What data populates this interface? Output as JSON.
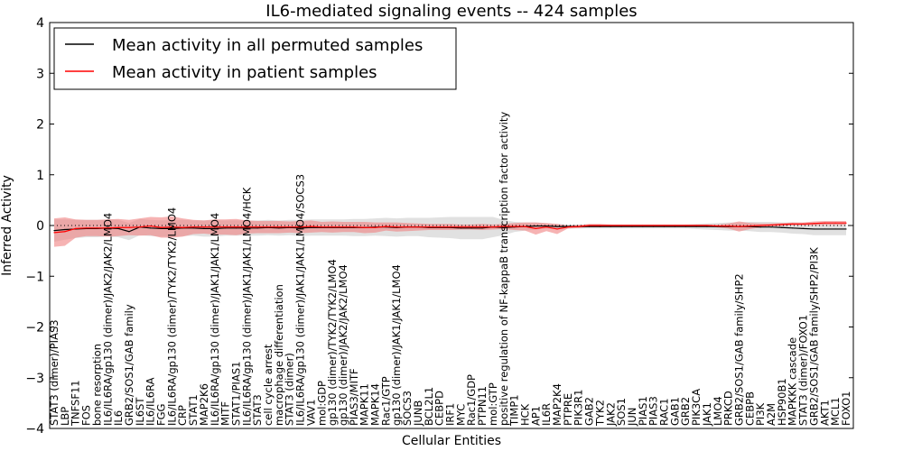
{
  "chart_data": {
    "type": "line",
    "title": "IL6-mediated signaling events -- 424 samples",
    "xlabel": "Cellular Entities",
    "ylabel": "Inferred Activity",
    "ylim": [
      -4,
      4
    ],
    "yticks": [
      -4,
      -3,
      -2,
      -1,
      0,
      1,
      2,
      3,
      4
    ],
    "legend_position": "top-left",
    "colors": {
      "permuted": "#000000",
      "patient": "#ff0000",
      "permuted_band": "#c8c8c8",
      "patient_band": "#f08080",
      "zero_line": "#000000"
    },
    "categories": [
      "STAT3 (dimer)/PIAS3",
      "LBP",
      "TNFSF11",
      "FOS",
      "bone resorption",
      "IL6/IL6RA/gp130 (dimer)/JAK2/JAK2/LMO4",
      "IL6",
      "GRB2/SOS1/GAB family",
      "IL6ST",
      "IL6/IL6RA",
      "FGG",
      "IL6/IL6RA/gp130 (dimer)/TYK2/TYK2/LMO4",
      "CRP",
      "STAT1",
      "MAP2K6",
      "IL6/IL6RA/gp130 (dimer)/JAK1/JAK1/LMO4",
      "MITF",
      "STAT1/PIAS1",
      "IL6/IL6RA/gp130 (dimer)/JAK1/JAK1/LMO4/HCK",
      "STAT3",
      "cell cycle arrest",
      "macrophage differentiation",
      "STAT3 (dimer)",
      "IL6/IL6RA/gp130 (dimer)/JAK1/JAK1/LMO4/SOCS3",
      "VAV1",
      "mol:GDP",
      "gp130 (dimer)/TYK2/TYK2/LMO4",
      "gp130 (dimer)/JAK2/JAK2/LMO4",
      "PIAS3/MITF",
      "MAPK11",
      "MAPK14",
      "Rac1/GTP",
      "gp130 (dimer)/JAK1/JAK1/LMO4",
      "SOCS3",
      "JUNB",
      "BCL2L1",
      "CEBPD",
      "IRF1",
      "MYC",
      "Rac1/GDP",
      "PTPN11",
      "mol:GTP",
      "positive regulation of NF-kappaB transcription factor activity",
      "TIMP1",
      "HCK",
      "AP1",
      "IL6R",
      "MAP2K4",
      "PTPRE",
      "PIK3R1",
      "GAB2",
      "TYK2",
      "JAK2",
      "SOS1",
      "JUN",
      "PIAS1",
      "PIAS3",
      "RAC1",
      "GAB1",
      "GRB2",
      "PIK3CA",
      "JAK1",
      "LMO4",
      "PRKCD",
      "GRB2/SOS1/GAB family/SHP2",
      "CEBPB",
      "PI3K",
      "A2M",
      "HSP90B1",
      "MAPKKK cascade",
      "STAT3 (dimer)/FOXO1",
      "GRB2/SOS1/GAB family/SHP2/PI3K",
      "AKT1",
      "MCL1",
      "FOXO1"
    ],
    "series": [
      {
        "name": "Mean activity in all permuted samples",
        "values": [
          -0.1,
          -0.08,
          -0.07,
          -0.06,
          -0.06,
          -0.05,
          -0.06,
          -0.12,
          -0.03,
          -0.05,
          -0.06,
          -0.06,
          -0.05,
          -0.05,
          -0.06,
          -0.06,
          -0.05,
          -0.05,
          -0.05,
          -0.05,
          -0.04,
          -0.05,
          -0.04,
          -0.05,
          -0.04,
          -0.04,
          -0.04,
          -0.04,
          -0.04,
          -0.04,
          -0.03,
          -0.03,
          -0.04,
          -0.03,
          -0.03,
          -0.04,
          -0.04,
          -0.04,
          -0.05,
          -0.05,
          -0.05,
          -0.03,
          -0.04,
          -0.03,
          -0.02,
          -0.01,
          -0.01,
          -0.02,
          -0.02,
          -0.02,
          -0.02,
          -0.02,
          -0.02,
          -0.02,
          -0.02,
          -0.02,
          -0.02,
          -0.02,
          -0.02,
          -0.02,
          -0.02,
          -0.02,
          -0.02,
          -0.02,
          -0.02,
          -0.02,
          -0.03,
          -0.03,
          -0.04,
          -0.05,
          -0.06,
          -0.07,
          -0.07,
          -0.07,
          -0.07
        ],
        "band": [
          0.22,
          0.2,
          0.18,
          0.17,
          0.17,
          0.17,
          0.17,
          0.17,
          0.16,
          0.16,
          0.16,
          0.16,
          0.16,
          0.15,
          0.16,
          0.16,
          0.15,
          0.15,
          0.15,
          0.15,
          0.15,
          0.15,
          0.15,
          0.16,
          0.16,
          0.16,
          0.16,
          0.16,
          0.17,
          0.17,
          0.17,
          0.18,
          0.18,
          0.18,
          0.18,
          0.19,
          0.2,
          0.21,
          0.22,
          0.22,
          0.22,
          0.2,
          0.15,
          0.1,
          0.08,
          0.07,
          0.05,
          0.05,
          0.04,
          0.04,
          0.04,
          0.04,
          0.04,
          0.04,
          0.04,
          0.04,
          0.04,
          0.04,
          0.04,
          0.04,
          0.05,
          0.06,
          0.07,
          0.08,
          0.08,
          0.09,
          0.1,
          0.1,
          0.1,
          0.11,
          0.11,
          0.12,
          0.12,
          0.12,
          0.12
        ]
      },
      {
        "name": "Mean activity in patient samples",
        "values": [
          -0.14,
          -0.12,
          -0.06,
          -0.05,
          -0.05,
          -0.05,
          -0.04,
          -0.04,
          -0.03,
          -0.01,
          -0.04,
          -0.03,
          -0.04,
          -0.03,
          -0.03,
          -0.03,
          -0.03,
          -0.03,
          -0.03,
          -0.03,
          -0.03,
          -0.03,
          -0.03,
          -0.03,
          -0.02,
          -0.03,
          -0.03,
          -0.03,
          -0.03,
          -0.04,
          -0.04,
          -0.02,
          -0.03,
          -0.03,
          -0.03,
          -0.03,
          -0.03,
          -0.03,
          -0.03,
          -0.03,
          -0.03,
          -0.03,
          -0.02,
          -0.02,
          -0.02,
          -0.06,
          -0.03,
          -0.07,
          -0.03,
          -0.02,
          0.0,
          0.0,
          0.0,
          0.0,
          0.0,
          0.0,
          0.0,
          0.0,
          0.0,
          0.0,
          0.0,
          0.0,
          -0.01,
          -0.01,
          -0.02,
          -0.01,
          0.0,
          0.01,
          0.02,
          0.03,
          0.03,
          0.04,
          0.05,
          0.05,
          0.05
        ],
        "band": [
          0.28,
          0.28,
          0.18,
          0.16,
          0.16,
          0.17,
          0.17,
          0.15,
          0.17,
          0.18,
          0.2,
          0.21,
          0.18,
          0.14,
          0.13,
          0.15,
          0.15,
          0.16,
          0.13,
          0.12,
          0.12,
          0.12,
          0.11,
          0.12,
          0.12,
          0.1,
          0.11,
          0.1,
          0.1,
          0.11,
          0.1,
          0.08,
          0.09,
          0.08,
          0.07,
          0.06,
          0.06,
          0.06,
          0.05,
          0.05,
          0.06,
          0.05,
          0.05,
          0.07,
          0.08,
          0.12,
          0.08,
          0.1,
          0.03,
          0.03,
          0.03,
          0.03,
          0.02,
          0.02,
          0.02,
          0.02,
          0.02,
          0.02,
          0.02,
          0.02,
          0.02,
          0.02,
          0.03,
          0.05,
          0.1,
          0.06,
          0.04,
          0.03,
          0.03,
          0.03,
          0.03,
          0.04,
          0.04,
          0.04,
          0.04
        ]
      }
    ]
  }
}
